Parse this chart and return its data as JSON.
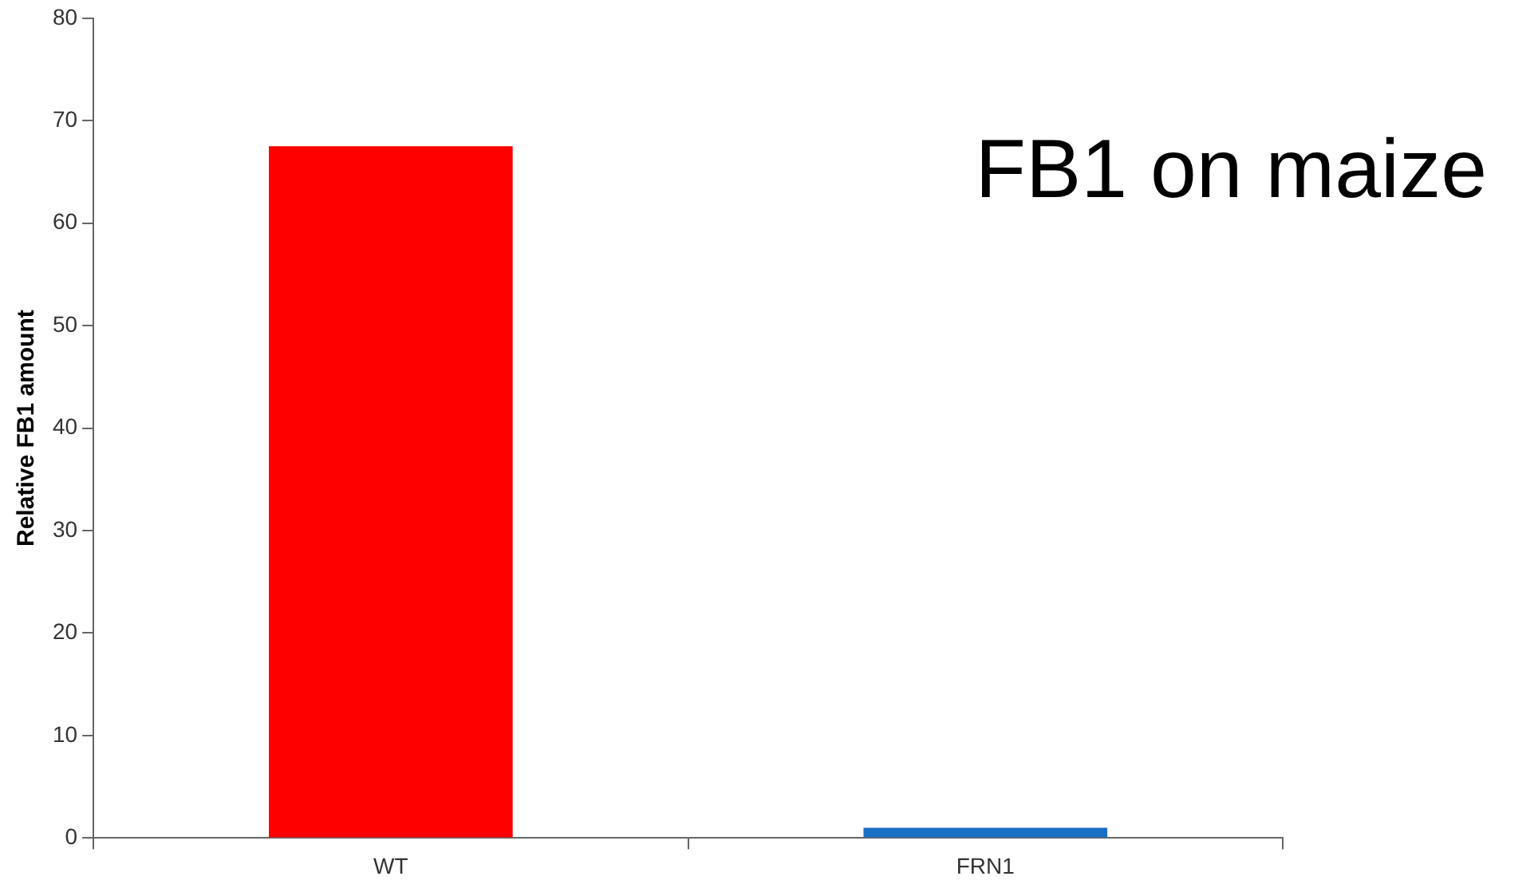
{
  "chart_data": {
    "type": "bar",
    "title": "FB1 on maize",
    "ylabel": "Relative FB1 amount",
    "categories": [
      "WT",
      "FRN1"
    ],
    "values": [
      67.5,
      1.0
    ],
    "colors": [
      "#ff0000",
      "#1a6fc4"
    ],
    "ylim": [
      0,
      80
    ],
    "yticks": [
      0,
      10,
      20,
      30,
      40,
      50,
      60,
      70,
      80
    ],
    "grid": false,
    "legend": false
  }
}
